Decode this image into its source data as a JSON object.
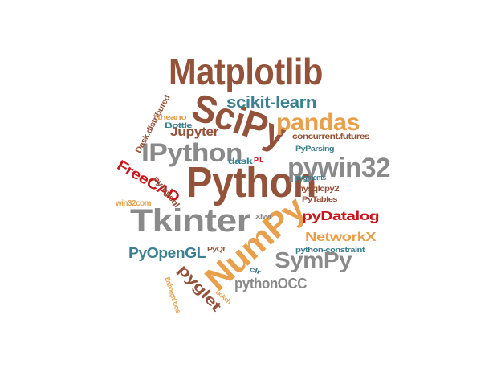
{
  "colors": {
    "brown": "#93533a",
    "orange": "#e8a04c",
    "teal": "#3d8190",
    "gray": "#8a8a8a",
    "red": "#c9151b"
  },
  "words": [
    {
      "text": "Python",
      "color": "brown"
    },
    {
      "text": "Matplotlib",
      "color": "brown"
    },
    {
      "text": "SciPy",
      "color": "brown"
    },
    {
      "text": "NumPy",
      "color": "orange"
    },
    {
      "text": "Tkinter",
      "color": "gray"
    },
    {
      "text": "IPython",
      "color": "gray"
    },
    {
      "text": "pywin32",
      "color": "gray"
    },
    {
      "text": "pandas",
      "color": "orange"
    },
    {
      "text": "scikit-learn",
      "color": "teal"
    },
    {
      "text": "SymPy",
      "color": "gray"
    },
    {
      "text": "Jupyter",
      "color": "brown"
    },
    {
      "text": "pyDatalog",
      "color": "red"
    },
    {
      "text": "FreeCAD",
      "color": "red"
    },
    {
      "text": "NetworkX",
      "color": "orange"
    },
    {
      "text": "PyOpenGL",
      "color": "teal"
    },
    {
      "text": "pyglet",
      "color": "brown"
    },
    {
      "text": "pythonOCC",
      "color": "gray"
    },
    {
      "text": "Dask.distributed",
      "color": "brown"
    },
    {
      "text": "theano",
      "color": "orange"
    },
    {
      "text": "Bottle",
      "color": "teal"
    },
    {
      "text": "concurrent.futures",
      "color": "brown"
    },
    {
      "text": "PyParsing",
      "color": "teal"
    },
    {
      "text": "dask",
      "color": "teal"
    },
    {
      "text": "PIL",
      "color": "red"
    },
    {
      "text": "pygments",
      "color": "teal"
    },
    {
      "text": "pymysql",
      "color": "brown"
    },
    {
      "text": "mysqlcpy2",
      "color": "brown"
    },
    {
      "text": "PyTables",
      "color": "brown"
    },
    {
      "text": "win32com",
      "color": "orange"
    },
    {
      "text": "xlwt",
      "color": "gray"
    },
    {
      "text": "python-constraint",
      "color": "teal"
    },
    {
      "text": "PyQt",
      "color": "brown"
    },
    {
      "text": "Enthought tools",
      "color": "orange"
    },
    {
      "text": "bokeh",
      "color": "orange"
    },
    {
      "text": "clr",
      "color": "teal"
    }
  ]
}
